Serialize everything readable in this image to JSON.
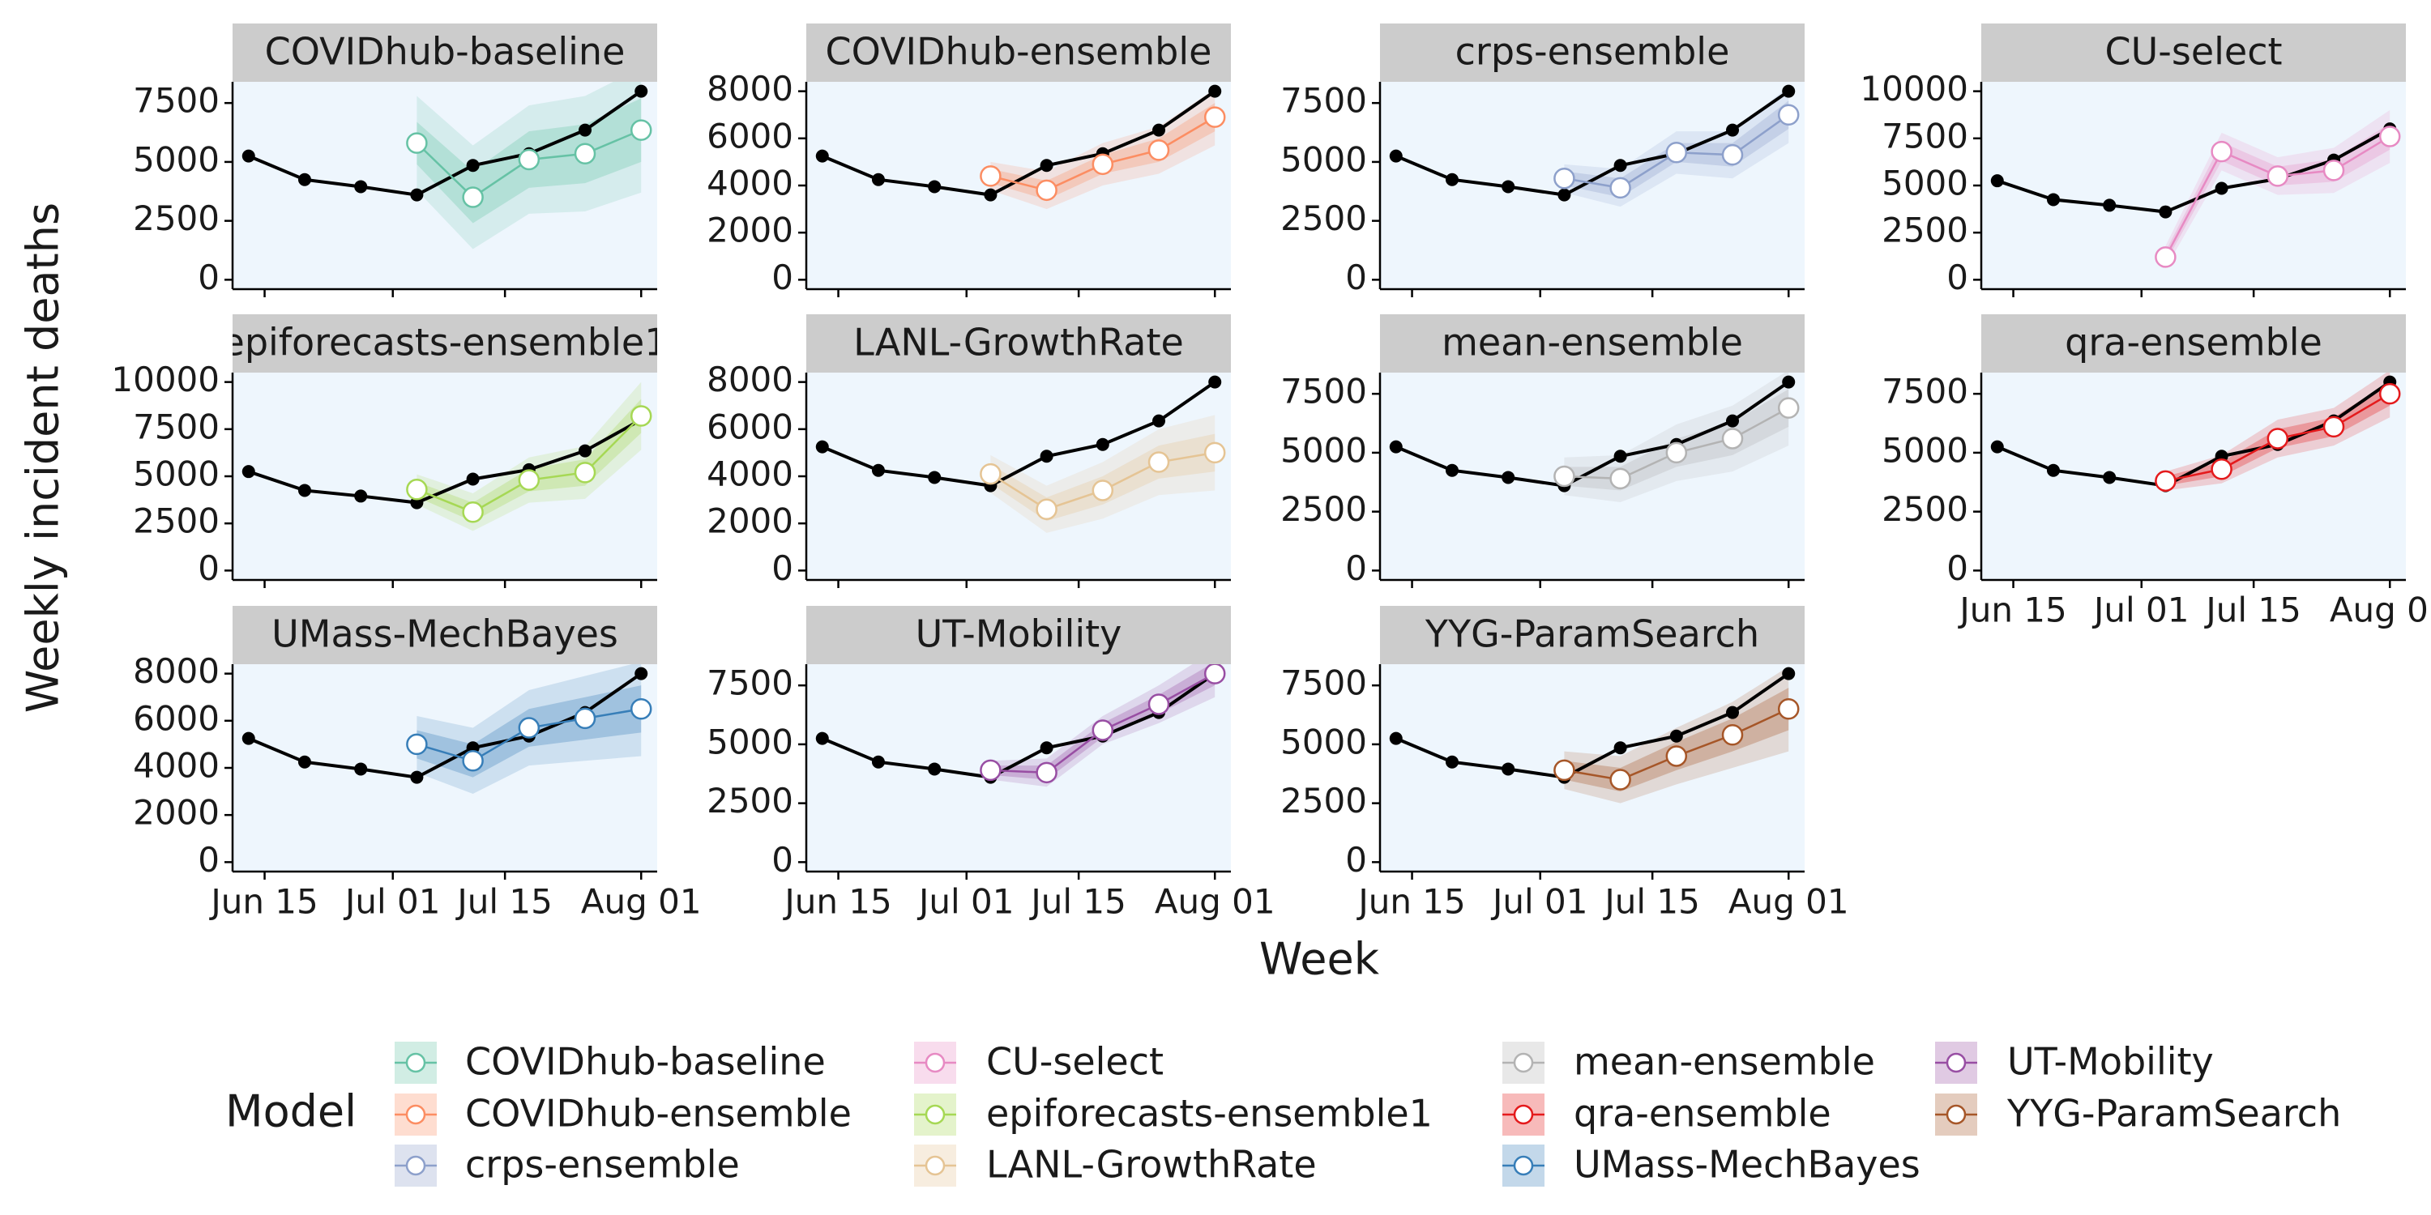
{
  "chart_data": {
    "type": "line",
    "y_label": "Weekly incident deaths",
    "x_label": "Week",
    "legend_title": "Model",
    "xlim": [
      "Jun 11",
      "Aug 03"
    ],
    "xticks": [
      "Jun 15",
      "Jul 01",
      "Jul 15",
      "Aug 01"
    ],
    "observed": {
      "color": "#000000",
      "x": [
        "Jun 13",
        "Jun 20",
        "Jun 27",
        "Jul 04",
        "Jul 11",
        "Jul 18",
        "Jul 25",
        "Aug 01"
      ],
      "values": [
        5250,
        4250,
        3950,
        3600,
        4850,
        5350,
        6350,
        8000
      ]
    },
    "forecast_x": [
      "Jul 04",
      "Jul 11",
      "Jul 18",
      "Jul 25",
      "Aug 01"
    ],
    "panels": [
      {
        "name": "COVIDhub-baseline",
        "color": "#66c2a5",
        "ylim": [
          -400,
          8400
        ],
        "yticks": [
          0,
          2500,
          5000,
          7500
        ],
        "values": [
          5800,
          3500,
          5100,
          5350,
          6350
        ],
        "interval_50": {
          "lower": [
            4900,
            2400,
            3900,
            4100,
            5000
          ],
          "upper": [
            6700,
            4600,
            6300,
            6600,
            7700
          ]
        },
        "interval_90": {
          "lower": [
            3800,
            1300,
            2800,
            2900,
            3700
          ],
          "upper": [
            7800,
            5700,
            7400,
            7800,
            9000
          ]
        }
      },
      {
        "name": "COVIDhub-ensemble",
        "color": "#fc8d62",
        "ylim": [
          -400,
          8400
        ],
        "yticks": [
          0,
          2000,
          4000,
          6000,
          8000
        ],
        "values": [
          4400,
          3800,
          4900,
          5500,
          6900
        ],
        "interval_50": {
          "lower": [
            4100,
            3400,
            4500,
            5000,
            6300
          ],
          "upper": [
            4700,
            4200,
            5300,
            6000,
            7500
          ]
        },
        "interval_90": {
          "lower": [
            3800,
            3000,
            4000,
            4500,
            5700
          ],
          "upper": [
            5000,
            4600,
            5800,
            6500,
            8100
          ]
        }
      },
      {
        "name": "crps-ensemble",
        "color": "#8da0cb",
        "ylim": [
          -400,
          8400
        ],
        "yticks": [
          0,
          2500,
          5000,
          7500
        ],
        "values": [
          4300,
          3900,
          5400,
          5300,
          7000
        ],
        "interval_50": {
          "lower": [
            4000,
            3500,
            5000,
            4800,
            6400
          ],
          "upper": [
            4600,
            4300,
            5800,
            5800,
            7600
          ]
        },
        "interval_90": {
          "lower": [
            3700,
            3100,
            4500,
            4300,
            5800
          ],
          "upper": [
            4900,
            4700,
            6300,
            6300,
            8200
          ]
        }
      },
      {
        "name": "CU-select",
        "color": "#e78ac3",
        "ylim": [
          -500,
          10500
        ],
        "yticks": [
          0,
          2500,
          5000,
          7500,
          10000
        ],
        "values": [
          1200,
          6800,
          5500,
          5800,
          7600
        ],
        "interval_50": {
          "lower": [
            900,
            6300,
            5000,
            5200,
            6900
          ],
          "upper": [
            1500,
            7300,
            6000,
            6400,
            8300
          ]
        },
        "interval_90": {
          "lower": [
            600,
            5800,
            4500,
            4600,
            6200
          ],
          "upper": [
            1800,
            7800,
            6500,
            7000,
            9000
          ]
        }
      },
      {
        "name": "epiforecasts-ensemble1",
        "color": "#a6d854",
        "ylim": [
          -500,
          10500
        ],
        "yticks": [
          0,
          2500,
          5000,
          7500,
          10000
        ],
        "values": [
          4300,
          3100,
          4800,
          5200,
          8200
        ],
        "interval_50": {
          "lower": [
            3900,
            2600,
            4200,
            4500,
            7300
          ],
          "upper": [
            4700,
            3600,
            5400,
            5900,
            9100
          ]
        },
        "interval_90": {
          "lower": [
            3500,
            2100,
            3600,
            3800,
            6400
          ],
          "upper": [
            5100,
            4100,
            6000,
            6600,
            10000
          ]
        }
      },
      {
        "name": "LANL-GrowthRate",
        "color": "#e5c494",
        "ylim": [
          -400,
          8400
        ],
        "yticks": [
          0,
          2000,
          4000,
          6000,
          8000
        ],
        "values": [
          4100,
          2600,
          3400,
          4600,
          5000
        ],
        "interval_50": {
          "lower": [
            3700,
            2100,
            2800,
            3900,
            4200
          ],
          "upper": [
            4500,
            3100,
            4000,
            5300,
            5800
          ]
        },
        "interval_90": {
          "lower": [
            3300,
            1600,
            2200,
            3200,
            3400
          ],
          "upper": [
            4900,
            3600,
            4600,
            6000,
            6600
          ]
        }
      },
      {
        "name": "mean-ensemble",
        "color": "#b3b3b3",
        "ylim": [
          -400,
          8400
        ],
        "yticks": [
          0,
          2500,
          5000,
          7500
        ],
        "values": [
          4000,
          3900,
          5000,
          5600,
          6900
        ],
        "interval_50": {
          "lower": [
            3600,
            3400,
            4400,
            4900,
            6100
          ],
          "upper": [
            4400,
            4400,
            5600,
            6300,
            7700
          ]
        },
        "interval_90": {
          "lower": [
            3200,
            2900,
            3800,
            4200,
            5300
          ],
          "upper": [
            4800,
            4900,
            6200,
            7000,
            8500
          ]
        }
      },
      {
        "name": "qra-ensemble",
        "color": "#e41a1c",
        "ylim": [
          -400,
          8400
        ],
        "yticks": [
          0,
          2500,
          5000,
          7500
        ],
        "values": [
          3800,
          4300,
          5600,
          6100,
          7500
        ],
        "interval_50": {
          "lower": [
            3600,
            4000,
            5200,
            5700,
            7000
          ],
          "upper": [
            4000,
            4600,
            6000,
            6500,
            8000
          ]
        },
        "interval_90": {
          "lower": [
            3400,
            3700,
            4800,
            5300,
            6500
          ],
          "upper": [
            4200,
            4900,
            6400,
            6900,
            8500
          ]
        }
      },
      {
        "name": "UMass-MechBayes",
        "color": "#377eb8",
        "ylim": [
          -400,
          8400
        ],
        "yticks": [
          0,
          2000,
          4000,
          6000,
          8000
        ],
        "values": [
          5000,
          4300,
          5700,
          6100,
          6500
        ],
        "interval_50": {
          "lower": [
            4400,
            3600,
            4900,
            5200,
            5500
          ],
          "upper": [
            5600,
            5000,
            6500,
            7000,
            7500
          ]
        },
        "interval_90": {
          "lower": [
            3800,
            2900,
            4100,
            4300,
            4500
          ],
          "upper": [
            6200,
            5700,
            7300,
            7900,
            8500
          ]
        }
      },
      {
        "name": "UT-Mobility",
        "color": "#984ea3",
        "ylim": [
          -400,
          8400
        ],
        "yticks": [
          0,
          2500,
          5000,
          7500
        ],
        "values": [
          3900,
          3800,
          5600,
          6700,
          8000
        ],
        "interval_50": {
          "lower": [
            3700,
            3500,
            5300,
            6300,
            7500
          ],
          "upper": [
            4100,
            4100,
            5900,
            7100,
            8500
          ]
        },
        "interval_90": {
          "lower": [
            3500,
            3200,
            5000,
            5900,
            7000
          ],
          "upper": [
            4300,
            4400,
            6200,
            7500,
            9000
          ]
        }
      },
      {
        "name": "YYG-ParamSearch",
        "color": "#a65628",
        "ylim": [
          -400,
          8400
        ],
        "yticks": [
          0,
          2500,
          5000,
          7500
        ],
        "values": [
          3900,
          3500,
          4500,
          5400,
          6500
        ],
        "interval_50": {
          "lower": [
            3500,
            3000,
            3900,
            4700,
            5600
          ],
          "upper": [
            4300,
            4000,
            5100,
            6100,
            7400
          ]
        },
        "interval_90": {
          "lower": [
            3100,
            2500,
            3300,
            4000,
            4700
          ],
          "upper": [
            4700,
            4500,
            5700,
            6800,
            8300
          ]
        }
      }
    ]
  }
}
